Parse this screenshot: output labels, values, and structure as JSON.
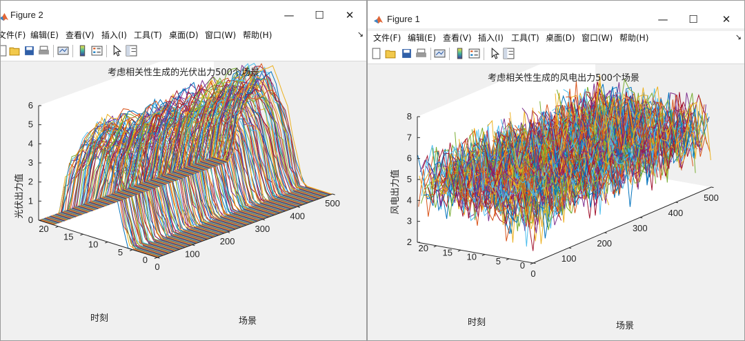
{
  "figures": [
    {
      "title": "Figure 2",
      "menu": [
        "文件(F)",
        "编辑(E)",
        "查看(V)",
        "插入(I)",
        "工具(T)",
        "桌面(D)",
        "窗口(W)",
        "帮助(H)"
      ],
      "toolbar_icons": [
        "new-figure-icon",
        "open-file-icon",
        "save-icon",
        "print-icon",
        "link-plot-icon",
        "insert-colorbar-icon",
        "insert-legend-icon",
        "edit-plot-arrow-icon",
        "property-inspector-icon"
      ],
      "chart_data": {
        "type": "line",
        "view": "3d",
        "title": "考虑相关性生成的光伏出力500个场景",
        "xlabel": "场景",
        "ylabel": "时刻",
        "zlabel": "光伏出力值",
        "xlim": [
          0,
          500
        ],
        "ylim": [
          0,
          24
        ],
        "zlim": [
          0,
          6
        ],
        "xticks": [
          "0",
          "100",
          "200",
          "300",
          "400",
          "500"
        ],
        "yticks": [
          "0",
          "5",
          "10",
          "15",
          "20"
        ],
        "zticks": [
          "0",
          "1",
          "2",
          "3",
          "4",
          "5",
          "6"
        ],
        "series_count": 500,
        "profile": {
          "hours": [
            0,
            1,
            2,
            3,
            4,
            5,
            6,
            7,
            8,
            9,
            10,
            11,
            12,
            13,
            14,
            15,
            16,
            17,
            18,
            19,
            20,
            21,
            22,
            23,
            24
          ],
          "values": [
            0,
            0,
            0,
            0,
            0,
            0,
            0.3,
            1.2,
            2.5,
            3.6,
            4.2,
            4.8,
            5.2,
            5.4,
            5.2,
            4.9,
            4.5,
            4.0,
            3.4,
            2.4,
            0.8,
            0,
            0,
            0,
            0
          ]
        }
      }
    },
    {
      "title": "Figure 1",
      "menu": [
        "文件(F)",
        "编辑(E)",
        "查看(V)",
        "插入(I)",
        "工具(T)",
        "桌面(D)",
        "窗口(W)",
        "帮助(H)"
      ],
      "toolbar_icons": [
        "new-figure-icon",
        "open-file-icon",
        "save-icon",
        "print-icon",
        "link-plot-icon",
        "insert-colorbar-icon",
        "insert-legend-icon",
        "edit-plot-arrow-icon",
        "property-inspector-icon"
      ],
      "chart_data": {
        "type": "line",
        "view": "3d",
        "title": "考虑相关性生成的风电出力500个场景",
        "xlabel": "场景",
        "ylabel": "时刻",
        "zlabel": "风电出力值",
        "xlim": [
          0,
          500
        ],
        "ylim": [
          0,
          24
        ],
        "zlim": [
          2,
          8
        ],
        "xticks": [
          "0",
          "100",
          "200",
          "300",
          "400",
          "500"
        ],
        "yticks": [
          "0",
          "5",
          "10",
          "15",
          "20"
        ],
        "zticks": [
          "2",
          "3",
          "4",
          "5",
          "6",
          "7",
          "8"
        ],
        "series_count": 500,
        "value_range": [
          2,
          8
        ],
        "mean_value": 4.8
      }
    }
  ],
  "series_colors": [
    "#0072bd",
    "#d95319",
    "#edb120",
    "#7e2f8e",
    "#77ac30",
    "#4dbeee",
    "#a2142f"
  ]
}
